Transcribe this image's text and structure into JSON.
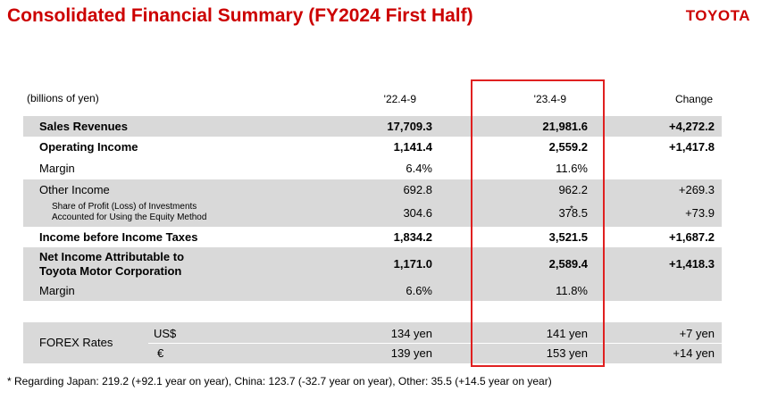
{
  "header": {
    "title": "Consolidated Financial Summary (FY2024 First Half)",
    "logo": "TOYOTA"
  },
  "table": {
    "unit": "(billions of yen)",
    "columns": [
      "'22.4-9",
      "'23.4-9",
      "Change"
    ],
    "rows": [
      {
        "label": "Sales Revenues",
        "v1": "17,709.3",
        "v2": "21,981.6",
        "v3": "+4,272.2"
      },
      {
        "label": "Operating Income",
        "v1": "1,141.4",
        "v2": "2,559.2",
        "v3": "+1,417.8"
      },
      {
        "label": "Margin",
        "v1": "6.4%",
        "v2": "11.6%",
        "v3": ""
      },
      {
        "label": "Other Income",
        "v1": "692.8",
        "v2": "962.2",
        "v3": "+269.3"
      },
      {
        "label_line1": "Share of Profit (Loss) of Investments",
        "label_line2": "Accounted for Using the Equity Method",
        "v1": "304.6",
        "v2": "378.5",
        "v3": "+73.9",
        "marker": "*"
      },
      {
        "label": "Income before Income Taxes",
        "v1": "1,834.2",
        "v2": "3,521.5",
        "v3": "+1,687.2"
      },
      {
        "label_line1": "Net Income Attributable to",
        "label_line2": "Toyota Motor Corporation",
        "v1": "1,171.0",
        "v2": "2,589.4",
        "v3": "+1,418.3"
      },
      {
        "label": "Margin",
        "v1": "6.6%",
        "v2": "11.8%",
        "v3": ""
      }
    ],
    "forex": {
      "label": "FOREX Rates",
      "rows": [
        {
          "currency": "US$",
          "v1": "134 yen",
          "v2": "141 yen",
          "v3": "+7 yen"
        },
        {
          "currency": "€",
          "v1": "139 yen",
          "v2": "153 yen",
          "v3": "+14 yen"
        }
      ]
    }
  },
  "footnote": "* Regarding Japan: 219.2 (+92.1 year on year), China: 123.7  (-32.7 year on year), Other: 35.5 (+14.5 year on year)",
  "colors": {
    "accent": "#cc0000",
    "highlight_box": "#e02020",
    "row_shade": "#d9d9d9"
  }
}
